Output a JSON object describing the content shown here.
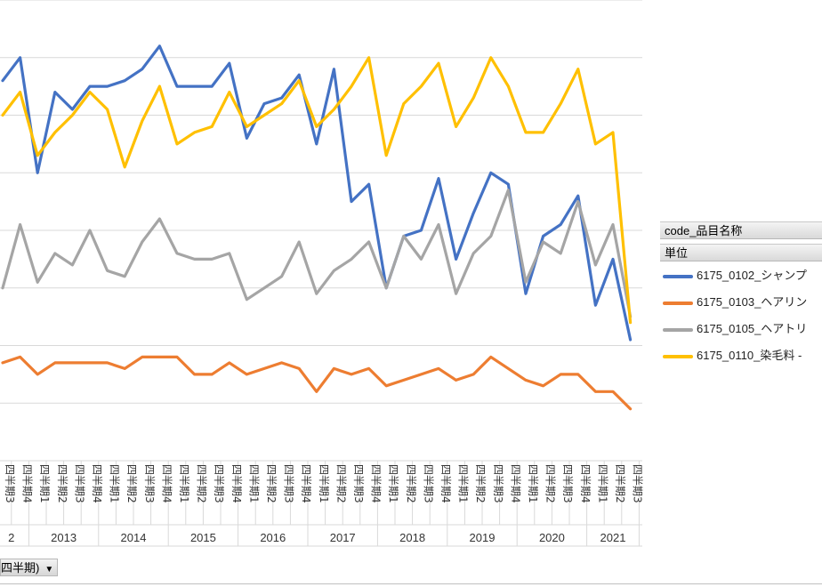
{
  "legend": {
    "header1": "code_品目名称",
    "header2": "単位",
    "items": [
      {
        "label": "6175_0102_シャンプ",
        "color": "#4472C4"
      },
      {
        "label": "6175_0103_ヘアリン",
        "color": "#ED7D31"
      },
      {
        "label": "6175_0105_ヘアトリ",
        "color": "#A5A5A5"
      },
      {
        "label": "6175_0110_染毛料 -",
        "color": "#FFC000"
      }
    ]
  },
  "filter_button": {
    "label": "四半期)",
    "arrow": "▼"
  },
  "chart_data": {
    "type": "line",
    "categories": [
      "四半期3",
      "四半期4",
      "四半期1",
      "四半期2",
      "四半期3",
      "四半期4",
      "四半期1",
      "四半期2",
      "四半期3",
      "四半期4",
      "四半期1",
      "四半期2",
      "四半期3",
      "四半期4",
      "四半期1",
      "四半期2",
      "四半期3",
      "四半期4",
      "四半期1",
      "四半期2",
      "四半期3",
      "四半期4",
      "四半期1",
      "四半期2",
      "四半期3",
      "四半期4",
      "四半期1",
      "四半期2",
      "四半期3",
      "四半期4",
      "四半期1",
      "四半期2",
      "四半期3",
      "四半期4",
      "四半期1",
      "四半期2",
      "四半期3"
    ],
    "year_groups": [
      {
        "label": "2",
        "span": 2
      },
      {
        "label": "2013",
        "span": 4
      },
      {
        "label": "2014",
        "span": 4
      },
      {
        "label": "2015",
        "span": 4
      },
      {
        "label": "2016",
        "span": 4
      },
      {
        "label": "2017",
        "span": 4
      },
      {
        "label": "2018",
        "span": 4
      },
      {
        "label": "2019",
        "span": 4
      },
      {
        "label": "2020",
        "span": 4
      },
      {
        "label": "2021",
        "span": 3
      }
    ],
    "series": [
      {
        "color": "#4472C4",
        "values": [
          6.6,
          7.0,
          5.0,
          6.4,
          6.1,
          6.5,
          6.5,
          6.6,
          6.8,
          7.2,
          6.5,
          6.5,
          6.5,
          6.9,
          5.6,
          6.2,
          6.3,
          6.7,
          5.5,
          6.8,
          4.5,
          4.8,
          3.0,
          3.9,
          4.0,
          4.9,
          3.5,
          4.3,
          5.0,
          4.8,
          2.9,
          3.9,
          4.1,
          4.6,
          2.7,
          3.5,
          2.1
        ]
      },
      {
        "color": "#ED7D31",
        "values": [
          1.7,
          1.8,
          1.5,
          1.7,
          1.7,
          1.7,
          1.7,
          1.6,
          1.8,
          1.8,
          1.8,
          1.5,
          1.5,
          1.7,
          1.5,
          1.6,
          1.7,
          1.6,
          1.2,
          1.6,
          1.5,
          1.6,
          1.3,
          1.4,
          1.5,
          1.6,
          1.4,
          1.5,
          1.8,
          1.6,
          1.4,
          1.3,
          1.5,
          1.5,
          1.2,
          1.2,
          0.9
        ]
      },
      {
        "color": "#A5A5A5",
        "values": [
          3.0,
          4.1,
          3.1,
          3.6,
          3.4,
          4.0,
          3.3,
          3.2,
          3.8,
          4.2,
          3.6,
          3.5,
          3.5,
          3.6,
          2.8,
          3.0,
          3.2,
          3.8,
          2.9,
          3.3,
          3.5,
          3.8,
          3.0,
          3.9,
          3.5,
          4.1,
          2.9,
          3.6,
          3.9,
          4.7,
          3.1,
          3.8,
          3.6,
          4.5,
          3.4,
          4.1,
          2.5
        ]
      },
      {
        "color": "#FFC000",
        "values": [
          6.0,
          6.4,
          5.3,
          5.7,
          6.0,
          6.4,
          6.1,
          5.1,
          5.9,
          6.5,
          5.5,
          5.7,
          5.8,
          6.4,
          5.8,
          6.0,
          6.2,
          6.6,
          5.8,
          6.1,
          6.5,
          7.0,
          5.3,
          6.2,
          6.5,
          6.9,
          5.8,
          6.3,
          7.0,
          6.5,
          5.7,
          5.7,
          6.2,
          6.8,
          5.5,
          5.7,
          2.4
        ]
      }
    ],
    "grid": true,
    "legend_position": "right"
  }
}
